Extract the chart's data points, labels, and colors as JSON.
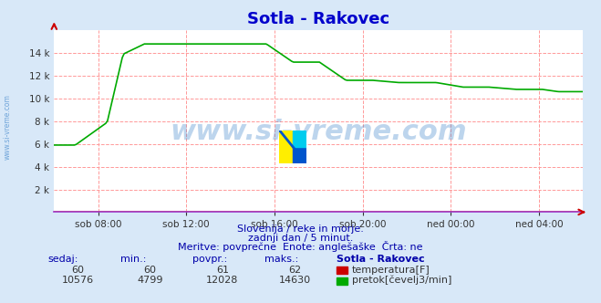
{
  "title": "Sotla - Rakovec",
  "title_color": "#0000cc",
  "background_color": "#d8e8f8",
  "plot_background": "#ffffff",
  "grid_color": "#ff9999",
  "xlabel_ticks": [
    "sob 08:00",
    "sob 12:00",
    "sob 16:00",
    "sob 20:00",
    "ned 00:00",
    "ned 04:00"
  ],
  "ylabel_ticks": [
    "2 k",
    "4 k",
    "6 k",
    "8 k",
    "10 k",
    "12 k",
    "14 k"
  ],
  "ylabel_values": [
    2000,
    4000,
    6000,
    8000,
    10000,
    12000,
    14000
  ],
  "ymin": 0,
  "ymax": 16000,
  "watermark": "www.si-vreme.com",
  "watermark_color": "#4488cc",
  "subtitle1": "Slovenija / reke in morje.",
  "subtitle2": "zadnji dan / 5 minut.",
  "subtitle3": "Meritve: povprečne  Enote: anglešaške  Črta: ne",
  "subtitle_color": "#0000aa",
  "table_header": [
    "sedaj:",
    "min.:",
    "povpr.:",
    "maks.:",
    "Sotla - Rakovec"
  ],
  "table_row1": [
    "60",
    "60",
    "61",
    "62",
    "temperatura[F]"
  ],
  "table_row2": [
    "10576",
    "4799",
    "12028",
    "14630",
    "pretok[čevelj3/min]"
  ],
  "temp_color": "#cc0000",
  "flow_color": "#00aa00",
  "axis_color": "#9933cc",
  "arrow_color": "#cc0000",
  "left_label": "www.si-vreme.com",
  "num_points": 288
}
